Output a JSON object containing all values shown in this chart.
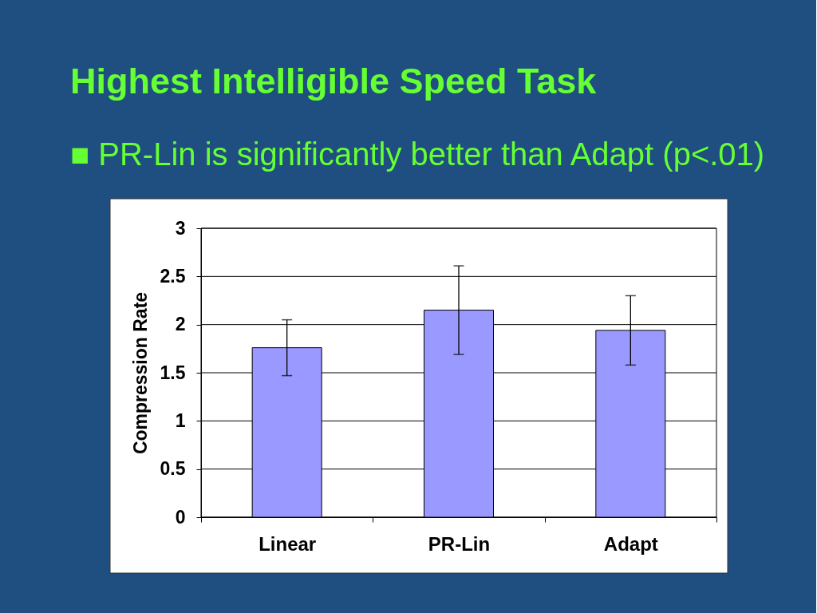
{
  "chart_data": {
    "type": "bar",
    "title": "Highest Intelligible Speed Task",
    "subtitle": "■ PR-Lin is significantly better than Adapt (p<.01)",
    "ylabel": "Compression Rate",
    "categories": [
      "Linear",
      "PR-Lin",
      "Adapt"
    ],
    "values": [
      1.76,
      2.15,
      1.94
    ],
    "errors": [
      [
        1.47,
        2.05
      ],
      [
        1.69,
        2.61
      ],
      [
        1.58,
        2.3
      ]
    ],
    "color": "#9999ff",
    "ylim": [
      0,
      3
    ],
    "yticks": [
      0,
      0.5,
      1,
      1.5,
      2,
      2.5,
      3
    ],
    "grid": "y"
  }
}
